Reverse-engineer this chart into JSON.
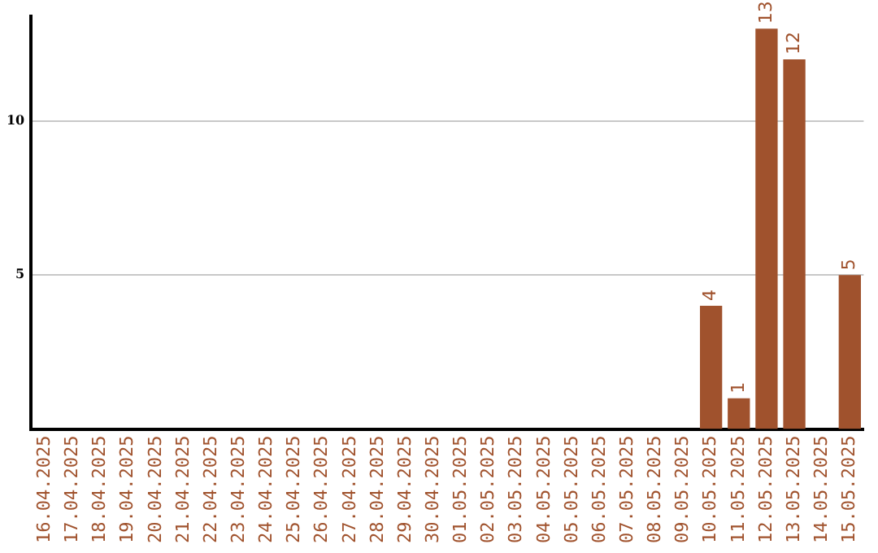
{
  "chart_data": {
    "type": "bar",
    "categories": [
      "16.04.2025",
      "17.04.2025",
      "18.04.2025",
      "19.04.2025",
      "20.04.2025",
      "21.04.2025",
      "22.04.2025",
      "23.04.2025",
      "24.04.2025",
      "25.04.2025",
      "26.04.2025",
      "27.04.2025",
      "28.04.2025",
      "29.04.2025",
      "30.04.2025",
      "01.05.2025",
      "02.05.2025",
      "03.05.2025",
      "04.05.2025",
      "05.05.2025",
      "06.05.2025",
      "07.05.2025",
      "08.05.2025",
      "09.05.2025",
      "10.05.2025",
      "11.05.2025",
      "12.05.2025",
      "13.05.2025",
      "14.05.2025",
      "15.05.2025"
    ],
    "values": [
      0,
      0,
      0,
      0,
      0,
      0,
      0,
      0,
      0,
      0,
      0,
      0,
      0,
      0,
      0,
      0,
      0,
      0,
      0,
      0,
      0,
      0,
      0,
      0,
      4,
      1,
      13,
      12,
      0,
      5
    ],
    "value_labels": [
      null,
      null,
      null,
      null,
      null,
      null,
      null,
      null,
      null,
      null,
      null,
      null,
      null,
      null,
      null,
      null,
      null,
      null,
      null,
      null,
      null,
      null,
      null,
      null,
      "4",
      "1",
      "13",
      "12",
      null,
      "5"
    ],
    "color": "#a0522d",
    "ylim": [
      0,
      13.4
    ],
    "yticks": [
      5,
      10
    ],
    "grid": "y",
    "legend": false
  }
}
